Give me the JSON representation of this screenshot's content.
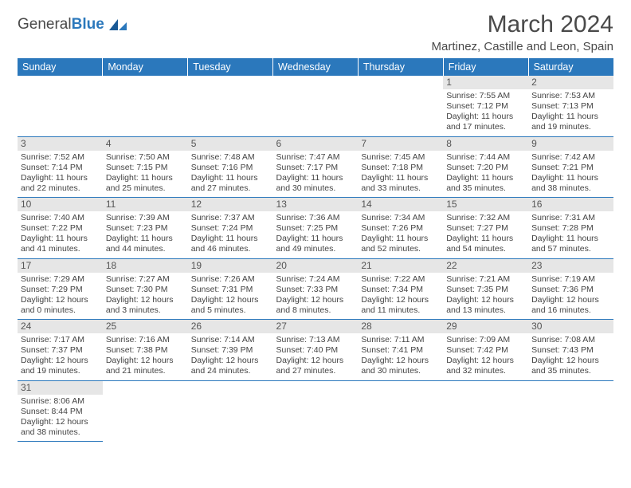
{
  "logo": {
    "part1": "General",
    "part2": "Blue"
  },
  "title": "March 2024",
  "location": "Martinez, Castille and Leon, Spain",
  "weekdays": [
    "Sunday",
    "Monday",
    "Tuesday",
    "Wednesday",
    "Thursday",
    "Friday",
    "Saturday"
  ],
  "colors": {
    "header_bg": "#2b78bc",
    "daynum_bg": "#e6e6e6",
    "text": "#444444"
  },
  "weeks": [
    [
      null,
      null,
      null,
      null,
      null,
      {
        "n": "1",
        "sr": "Sunrise: 7:55 AM",
        "ss": "Sunset: 7:12 PM",
        "d1": "Daylight: 11 hours",
        "d2": "and 17 minutes."
      },
      {
        "n": "2",
        "sr": "Sunrise: 7:53 AM",
        "ss": "Sunset: 7:13 PM",
        "d1": "Daylight: 11 hours",
        "d2": "and 19 minutes."
      }
    ],
    [
      {
        "n": "3",
        "sr": "Sunrise: 7:52 AM",
        "ss": "Sunset: 7:14 PM",
        "d1": "Daylight: 11 hours",
        "d2": "and 22 minutes."
      },
      {
        "n": "4",
        "sr": "Sunrise: 7:50 AM",
        "ss": "Sunset: 7:15 PM",
        "d1": "Daylight: 11 hours",
        "d2": "and 25 minutes."
      },
      {
        "n": "5",
        "sr": "Sunrise: 7:48 AM",
        "ss": "Sunset: 7:16 PM",
        "d1": "Daylight: 11 hours",
        "d2": "and 27 minutes."
      },
      {
        "n": "6",
        "sr": "Sunrise: 7:47 AM",
        "ss": "Sunset: 7:17 PM",
        "d1": "Daylight: 11 hours",
        "d2": "and 30 minutes."
      },
      {
        "n": "7",
        "sr": "Sunrise: 7:45 AM",
        "ss": "Sunset: 7:18 PM",
        "d1": "Daylight: 11 hours",
        "d2": "and 33 minutes."
      },
      {
        "n": "8",
        "sr": "Sunrise: 7:44 AM",
        "ss": "Sunset: 7:20 PM",
        "d1": "Daylight: 11 hours",
        "d2": "and 35 minutes."
      },
      {
        "n": "9",
        "sr": "Sunrise: 7:42 AM",
        "ss": "Sunset: 7:21 PM",
        "d1": "Daylight: 11 hours",
        "d2": "and 38 minutes."
      }
    ],
    [
      {
        "n": "10",
        "sr": "Sunrise: 7:40 AM",
        "ss": "Sunset: 7:22 PM",
        "d1": "Daylight: 11 hours",
        "d2": "and 41 minutes."
      },
      {
        "n": "11",
        "sr": "Sunrise: 7:39 AM",
        "ss": "Sunset: 7:23 PM",
        "d1": "Daylight: 11 hours",
        "d2": "and 44 minutes."
      },
      {
        "n": "12",
        "sr": "Sunrise: 7:37 AM",
        "ss": "Sunset: 7:24 PM",
        "d1": "Daylight: 11 hours",
        "d2": "and 46 minutes."
      },
      {
        "n": "13",
        "sr": "Sunrise: 7:36 AM",
        "ss": "Sunset: 7:25 PM",
        "d1": "Daylight: 11 hours",
        "d2": "and 49 minutes."
      },
      {
        "n": "14",
        "sr": "Sunrise: 7:34 AM",
        "ss": "Sunset: 7:26 PM",
        "d1": "Daylight: 11 hours",
        "d2": "and 52 minutes."
      },
      {
        "n": "15",
        "sr": "Sunrise: 7:32 AM",
        "ss": "Sunset: 7:27 PM",
        "d1": "Daylight: 11 hours",
        "d2": "and 54 minutes."
      },
      {
        "n": "16",
        "sr": "Sunrise: 7:31 AM",
        "ss": "Sunset: 7:28 PM",
        "d1": "Daylight: 11 hours",
        "d2": "and 57 minutes."
      }
    ],
    [
      {
        "n": "17",
        "sr": "Sunrise: 7:29 AM",
        "ss": "Sunset: 7:29 PM",
        "d1": "Daylight: 12 hours",
        "d2": "and 0 minutes."
      },
      {
        "n": "18",
        "sr": "Sunrise: 7:27 AM",
        "ss": "Sunset: 7:30 PM",
        "d1": "Daylight: 12 hours",
        "d2": "and 3 minutes."
      },
      {
        "n": "19",
        "sr": "Sunrise: 7:26 AM",
        "ss": "Sunset: 7:31 PM",
        "d1": "Daylight: 12 hours",
        "d2": "and 5 minutes."
      },
      {
        "n": "20",
        "sr": "Sunrise: 7:24 AM",
        "ss": "Sunset: 7:33 PM",
        "d1": "Daylight: 12 hours",
        "d2": "and 8 minutes."
      },
      {
        "n": "21",
        "sr": "Sunrise: 7:22 AM",
        "ss": "Sunset: 7:34 PM",
        "d1": "Daylight: 12 hours",
        "d2": "and 11 minutes."
      },
      {
        "n": "22",
        "sr": "Sunrise: 7:21 AM",
        "ss": "Sunset: 7:35 PM",
        "d1": "Daylight: 12 hours",
        "d2": "and 13 minutes."
      },
      {
        "n": "23",
        "sr": "Sunrise: 7:19 AM",
        "ss": "Sunset: 7:36 PM",
        "d1": "Daylight: 12 hours",
        "d2": "and 16 minutes."
      }
    ],
    [
      {
        "n": "24",
        "sr": "Sunrise: 7:17 AM",
        "ss": "Sunset: 7:37 PM",
        "d1": "Daylight: 12 hours",
        "d2": "and 19 minutes."
      },
      {
        "n": "25",
        "sr": "Sunrise: 7:16 AM",
        "ss": "Sunset: 7:38 PM",
        "d1": "Daylight: 12 hours",
        "d2": "and 21 minutes."
      },
      {
        "n": "26",
        "sr": "Sunrise: 7:14 AM",
        "ss": "Sunset: 7:39 PM",
        "d1": "Daylight: 12 hours",
        "d2": "and 24 minutes."
      },
      {
        "n": "27",
        "sr": "Sunrise: 7:13 AM",
        "ss": "Sunset: 7:40 PM",
        "d1": "Daylight: 12 hours",
        "d2": "and 27 minutes."
      },
      {
        "n": "28",
        "sr": "Sunrise: 7:11 AM",
        "ss": "Sunset: 7:41 PM",
        "d1": "Daylight: 12 hours",
        "d2": "and 30 minutes."
      },
      {
        "n": "29",
        "sr": "Sunrise: 7:09 AM",
        "ss": "Sunset: 7:42 PM",
        "d1": "Daylight: 12 hours",
        "d2": "and 32 minutes."
      },
      {
        "n": "30",
        "sr": "Sunrise: 7:08 AM",
        "ss": "Sunset: 7:43 PM",
        "d1": "Daylight: 12 hours",
        "d2": "and 35 minutes."
      }
    ],
    [
      {
        "n": "31",
        "sr": "Sunrise: 8:06 AM",
        "ss": "Sunset: 8:44 PM",
        "d1": "Daylight: 12 hours",
        "d2": "and 38 minutes."
      },
      null,
      null,
      null,
      null,
      null,
      null
    ]
  ]
}
